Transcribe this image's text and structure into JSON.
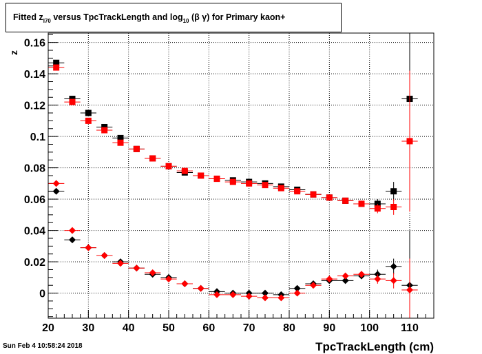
{
  "title": {
    "prefix": "Fitted  z",
    "sub1": "I70",
    "middle": "  versus TpcTrackLength and log",
    "sub2": "10",
    "suffix": " (β γ) for Primary kaon+"
  },
  "datestamp": "Sun Feb  4 10:58:24 2018",
  "colors": {
    "series_a": "#000000",
    "series_b": "#ff0000",
    "grid": "#000000"
  },
  "chart_data": {
    "type": "scatter",
    "xlabel": "TpcTrackLength (cm)",
    "ylabel": "z",
    "xlim": [
      20,
      116
    ],
    "ylim": [
      -0.016,
      0.166
    ],
    "xticks": [
      20,
      30,
      40,
      50,
      60,
      70,
      80,
      90,
      100,
      110
    ],
    "xtick_labels": [
      "20",
      "30",
      "40",
      "50",
      "60",
      "70",
      "80",
      "90",
      "100",
      "110"
    ],
    "yticks": [
      0,
      0.02,
      0.04,
      0.06,
      0.08,
      0.1,
      0.12,
      0.14,
      0.16
    ],
    "ytick_labels": [
      "0",
      "0.02",
      "0.04",
      "0.06",
      "0.08",
      "0.1",
      "0.12",
      "0.14",
      "0.16"
    ],
    "grid": true,
    "x_bin_halfwidth": 2,
    "series": [
      {
        "color": "#000000",
        "marker": "square",
        "x": [
          22,
          26,
          30,
          34,
          38,
          42,
          46,
          50,
          54,
          58,
          62,
          66,
          70,
          74,
          78,
          82,
          86,
          90,
          94,
          98,
          102,
          106,
          110
        ],
        "y": [
          0.147,
          0.124,
          0.115,
          0.106,
          0.099,
          0.092,
          0.086,
          0.081,
          0.077,
          0.075,
          0.073,
          0.072,
          0.071,
          0.07,
          0.068,
          0.066,
          0.063,
          0.061,
          0.059,
          0.057,
          0.057,
          0.065,
          0.124
        ],
        "yerr": [
          0.001,
          0.001,
          0.001,
          0.001,
          0.001,
          0.001,
          0.001,
          0.001,
          0.001,
          0.001,
          0.001,
          0.001,
          0.001,
          0.001,
          0.001,
          0.001,
          0.001,
          0.001,
          0.001,
          0.001,
          0.003,
          0.006,
          0.07
        ]
      },
      {
        "color": "#ff0000",
        "marker": "square",
        "x": [
          22,
          26,
          30,
          34,
          38,
          42,
          46,
          50,
          54,
          58,
          62,
          66,
          70,
          74,
          78,
          82,
          86,
          90,
          94,
          98,
          102,
          106,
          110
        ],
        "y": [
          0.144,
          0.122,
          0.11,
          0.104,
          0.096,
          0.092,
          0.086,
          0.081,
          0.078,
          0.075,
          0.073,
          0.071,
          0.07,
          0.069,
          0.067,
          0.065,
          0.063,
          0.061,
          0.059,
          0.057,
          0.054,
          0.055,
          0.097
        ],
        "yerr": [
          0.001,
          0.001,
          0.001,
          0.001,
          0.001,
          0.001,
          0.001,
          0.001,
          0.001,
          0.001,
          0.001,
          0.001,
          0.001,
          0.001,
          0.001,
          0.001,
          0.001,
          0.001,
          0.001,
          0.001,
          0.003,
          0.005,
          0.045
        ]
      },
      {
        "color": "#000000",
        "marker": "diamond",
        "x": [
          22,
          26,
          30,
          34,
          38,
          42,
          46,
          50,
          54,
          58,
          62,
          66,
          70,
          74,
          78,
          82,
          86,
          90,
          94,
          98,
          102,
          106,
          110
        ],
        "y": [
          0.065,
          0.034,
          0.029,
          0.024,
          0.02,
          0.016,
          0.012,
          0.01,
          0.006,
          0.003,
          0.001,
          0.0,
          0.0,
          0.0,
          -0.001,
          0.003,
          0.006,
          0.008,
          0.008,
          0.011,
          0.012,
          0.017,
          0.005
        ],
        "yerr": [
          0.001,
          0.001,
          0.001,
          0.001,
          0.001,
          0.001,
          0.001,
          0.001,
          0.001,
          0.001,
          0.001,
          0.001,
          0.001,
          0.001,
          0.001,
          0.001,
          0.001,
          0.001,
          0.001,
          0.001,
          0.003,
          0.005,
          0.035
        ]
      },
      {
        "color": "#ff0000",
        "marker": "diamond",
        "x": [
          22,
          26,
          30,
          34,
          38,
          42,
          46,
          50,
          54,
          58,
          62,
          66,
          70,
          74,
          78,
          82,
          86,
          90,
          94,
          98,
          102,
          106,
          110
        ],
        "y": [
          0.07,
          0.04,
          0.029,
          0.024,
          0.019,
          0.016,
          0.013,
          0.009,
          0.006,
          0.003,
          -0.001,
          -0.001,
          -0.002,
          -0.003,
          -0.003,
          0.0,
          0.005,
          0.009,
          0.011,
          0.012,
          0.009,
          0.008,
          0.002
        ],
        "yerr": [
          0.001,
          0.001,
          0.001,
          0.001,
          0.001,
          0.001,
          0.001,
          0.001,
          0.001,
          0.001,
          0.001,
          0.001,
          0.001,
          0.001,
          0.001,
          0.001,
          0.001,
          0.001,
          0.001,
          0.001,
          0.003,
          0.005,
          0.02
        ]
      }
    ]
  }
}
